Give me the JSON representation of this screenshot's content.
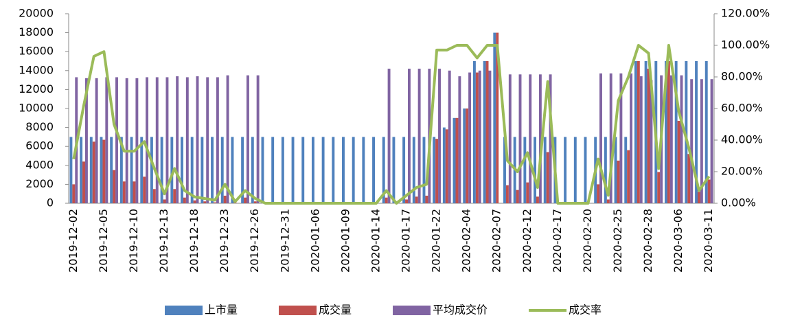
{
  "chart_data": {
    "type": "bar",
    "categories": [
      "2019-12-02",
      null,
      null,
      "2019-12-05",
      null,
      null,
      "2019-12-10",
      null,
      null,
      "2019-12-13",
      null,
      null,
      "2019-12-18",
      null,
      null,
      "2019-12-23",
      null,
      null,
      "2019-12-26",
      null,
      null,
      "2019-12-31",
      null,
      null,
      "2020-01-06",
      null,
      null,
      "2020-01-09",
      null,
      null,
      "2020-01-14",
      null,
      null,
      "2020-01-17",
      null,
      null,
      "2020-01-22",
      null,
      null,
      "2020-02-04",
      null,
      null,
      "2020-02-07",
      null,
      null,
      "2020-02-12",
      null,
      null,
      "2020-02-17",
      null,
      null,
      "2020-02-20",
      null,
      null,
      "2020-02-25",
      null,
      null,
      "2020-02-28",
      null,
      null,
      "2020-03-06",
      null,
      null,
      "2020-03-11"
    ],
    "series": [
      {
        "name": "上市量",
        "color": "#4f81bd",
        "values": [
          7000,
          7000,
          7000,
          7000,
          7000,
          7000,
          7000,
          7000,
          7000,
          7000,
          7000,
          7000,
          7000,
          7000,
          7000,
          7000,
          7000,
          7000,
          7000,
          7000,
          7000,
          7000,
          7000,
          7000,
          7000,
          7000,
          7000,
          7000,
          7000,
          7000,
          7000,
          7000,
          7000,
          7000,
          7000,
          7000,
          7000,
          8000,
          9000,
          10000,
          15000,
          15000,
          18000,
          7000,
          7000,
          7000,
          7000,
          7000,
          7000,
          7000,
          7000,
          7000,
          7000,
          7000,
          7000,
          7000,
          15000,
          15000,
          15000,
          15000,
          15000,
          15000,
          15000,
          15000
        ]
      },
      {
        "name": "成交量",
        "color": "#c0504d",
        "values": [
          2000,
          4400,
          6500,
          6700,
          3500,
          2300,
          2300,
          2800,
          1500,
          400,
          1500,
          600,
          300,
          200,
          100,
          800,
          100,
          600,
          200,
          0,
          0,
          0,
          0,
          0,
          0,
          0,
          0,
          0,
          0,
          0,
          0,
          600,
          0,
          400,
          700,
          800,
          6800,
          7800,
          9000,
          10000,
          13800,
          15000,
          18000,
          1900,
          1400,
          2200,
          700,
          5400,
          0,
          0,
          0,
          0,
          2000,
          400,
          4500,
          5600,
          15000,
          14200,
          3300,
          15000,
          8700,
          5200,
          1200,
          2500
        ]
      },
      {
        "name": "平均成交价",
        "color": "#8064a2",
        "values": [
          13300,
          13200,
          13200,
          13300,
          13300,
          13200,
          13200,
          13300,
          13300,
          13300,
          13400,
          13300,
          13400,
          13300,
          13300,
          13500,
          0,
          13500,
          13500,
          0,
          0,
          0,
          0,
          0,
          0,
          0,
          0,
          0,
          0,
          0,
          0,
          14200,
          0,
          14200,
          14200,
          14200,
          14200,
          14000,
          13400,
          13800,
          14000,
          14000,
          0,
          13600,
          13600,
          13600,
          13600,
          13600,
          0,
          0,
          0,
          0,
          13700,
          13700,
          13700,
          13700,
          13400,
          13000,
          13500,
          13500,
          13500,
          13100,
          13100,
          13100
        ]
      },
      {
        "name": "成交率",
        "color": "#9bbb59",
        "axis": "y2",
        "type": "line",
        "values": [
          28,
          62,
          93,
          96,
          50,
          33,
          33,
          39,
          22,
          6,
          22,
          8,
          4,
          3,
          2,
          12,
          1,
          8,
          3,
          0,
          0,
          0,
          0,
          0,
          0,
          0,
          0,
          0,
          0,
          0,
          0,
          8,
          0,
          5,
          10,
          12,
          97,
          97,
          100,
          100,
          92,
          100,
          100,
          27,
          20,
          32,
          10,
          77,
          0,
          0,
          0,
          0,
          28,
          5,
          65,
          80,
          100,
          95,
          22,
          100,
          58,
          35,
          8,
          17
        ]
      }
    ],
    "ylim": [
      0,
      20000
    ],
    "yticks": [
      0,
      2000,
      4000,
      6000,
      8000,
      10000,
      12000,
      14000,
      16000,
      18000,
      20000
    ],
    "y2lim": [
      0,
      120
    ],
    "y2ticks": [
      {
        "value": 0,
        "label": "0.00%"
      },
      {
        "value": 20,
        "label": "20.00%"
      },
      {
        "value": 40,
        "label": "40.00%"
      },
      {
        "value": 60,
        "label": "60.00%"
      },
      {
        "value": 80,
        "label": "80.00%"
      },
      {
        "value": 100,
        "label": "100.00%"
      },
      {
        "value": 120,
        "label": "120.00%"
      }
    ],
    "legend": "bottom"
  }
}
